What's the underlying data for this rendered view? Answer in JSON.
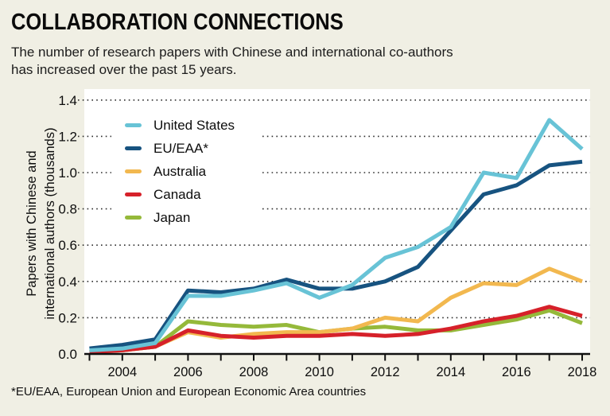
{
  "title": "COLLABORATION CONNECTIONS",
  "subtitle_line1": "The number of research papers with Chinese and international co-authors",
  "subtitle_line2": "has increased over the past 15 years.",
  "footnote": "*EU/EAA, European Union and European Economic Area countries",
  "colors": {
    "background": "#f0efe4",
    "plot_background": "#ffffff",
    "axis": "#101010",
    "grid_dots": "#2e2e2e",
    "text": "#0d0d0d"
  },
  "chart_data": {
    "type": "line",
    "title": "COLLABORATION CONNECTIONS",
    "subtitle": "The number of research papers with Chinese and international co-authors has increased over the past 15 years.",
    "ylabel_line1": "Papers with Chinese and",
    "ylabel_line2": "international authors (thousands)",
    "xlabel": "",
    "ylim": [
      0,
      1.4
    ],
    "grid": "dotted horizontal gridlines every 0.2",
    "legend_position": "top-left inside plot",
    "x": [
      2003,
      2004,
      2005,
      2006,
      2007,
      2008,
      2009,
      2010,
      2011,
      2012,
      2013,
      2014,
      2015,
      2016,
      2017,
      2018
    ],
    "x_tick_labels": [
      2004,
      2006,
      2008,
      2010,
      2012,
      2014,
      2016,
      2018
    ],
    "y_tick_labels": [
      "0.0",
      "0.2",
      "0.4",
      "0.6",
      "0.8",
      "1.0",
      "1.2",
      "1.4"
    ],
    "series": [
      {
        "name": "United States",
        "color": "#68c3d6",
        "values": [
          0.02,
          0.03,
          0.06,
          0.32,
          0.32,
          0.35,
          0.39,
          0.31,
          0.38,
          0.53,
          0.59,
          0.7,
          1.0,
          0.97,
          1.29,
          1.13
        ]
      },
      {
        "name": "EU/EAA*",
        "color": "#175380",
        "values": [
          0.03,
          0.05,
          0.08,
          0.35,
          0.34,
          0.36,
          0.41,
          0.36,
          0.36,
          0.4,
          0.48,
          0.68,
          0.88,
          0.93,
          1.04,
          1.06
        ]
      },
      {
        "name": "Australia",
        "color": "#f2b84f",
        "values": [
          0.01,
          0.02,
          0.04,
          0.12,
          0.09,
          0.11,
          0.12,
          0.12,
          0.14,
          0.2,
          0.18,
          0.31,
          0.39,
          0.38,
          0.47,
          0.4
        ]
      },
      {
        "name": "Canada",
        "color": "#d6212a",
        "values": [
          0.01,
          0.02,
          0.04,
          0.13,
          0.1,
          0.09,
          0.1,
          0.1,
          0.11,
          0.1,
          0.11,
          0.14,
          0.18,
          0.21,
          0.26,
          0.21
        ]
      },
      {
        "name": "Japan",
        "color": "#95b93a",
        "values": [
          0.01,
          0.02,
          0.04,
          0.18,
          0.16,
          0.15,
          0.16,
          0.12,
          0.14,
          0.15,
          0.13,
          0.13,
          0.16,
          0.19,
          0.24,
          0.17
        ]
      }
    ]
  }
}
